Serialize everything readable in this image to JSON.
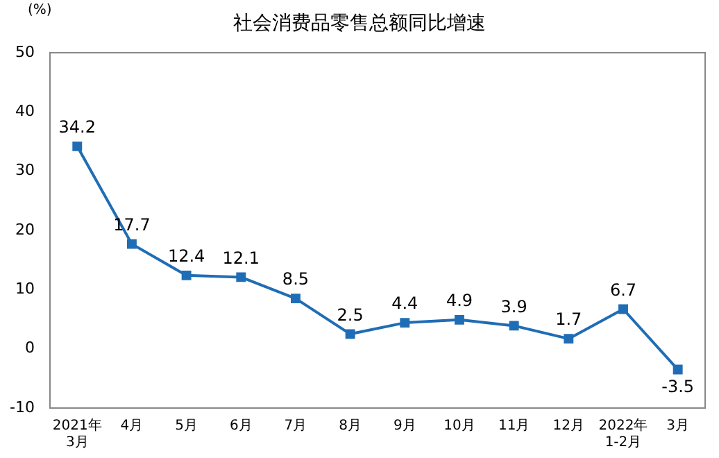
{
  "chart_data": {
    "type": "line",
    "title": "社会消费品零售总额同比增速",
    "ylabel": "(%)",
    "categories": [
      "2021年\n3月",
      "4月",
      "5月",
      "6月",
      "7月",
      "8月",
      "9月",
      "10月",
      "11月",
      "12月",
      "2022年\n1-2月",
      "3月"
    ],
    "values": [
      34.2,
      17.7,
      12.4,
      12.1,
      8.5,
      2.5,
      4.4,
      4.9,
      3.9,
      1.7,
      6.7,
      -3.5
    ],
    "color": "#1f6db5",
    "marker": "square",
    "line_style": "solid",
    "data_labels": true,
    "grid": false,
    "legend": false,
    "ylim": [
      -10,
      50
    ],
    "yticks": [
      -10,
      0,
      10,
      20,
      30,
      40,
      50
    ]
  }
}
